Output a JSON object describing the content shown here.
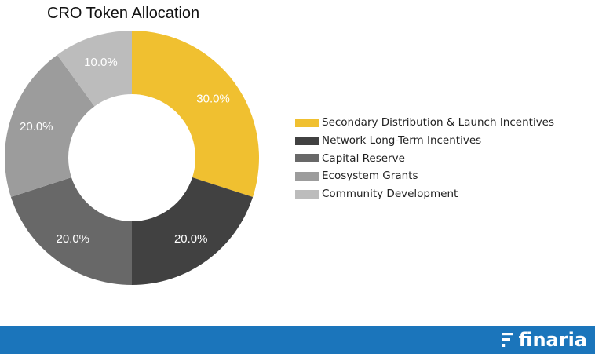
{
  "chart_data": {
    "type": "pie",
    "title": "CRO Token Allocation",
    "donut": true,
    "legend_position": "right",
    "categories": [
      "Secondary Distribution & Launch Incentives",
      "Network Long-Term Incentives",
      "Capital Reserve",
      "Ecosystem Grants",
      "Community Development"
    ],
    "values": [
      30.0,
      20.0,
      20.0,
      20.0,
      10.0
    ],
    "data_labels": [
      "30.0%",
      "20.0%",
      "20.0%",
      "20.0%",
      "10.0%"
    ],
    "colors": [
      "#f0c030",
      "#414141",
      "#686868",
      "#9c9c9c",
      "#bcbcbc"
    ]
  },
  "footer": {
    "background": "#1b75bb",
    "brand_name": "finaria",
    "brand_icon": "finaria-logo-icon"
  }
}
